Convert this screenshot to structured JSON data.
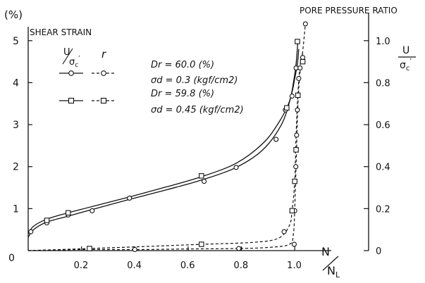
{
  "chart_data": {
    "type": "line",
    "x_axis": {
      "label_num": "N",
      "label_den": "N",
      "label_den_sub": "L",
      "range": [
        0,
        1.1
      ],
      "ticks": [
        {
          "value": 0.2,
          "label": "0.2"
        },
        {
          "value": 0.4,
          "label": "0.4"
        },
        {
          "value": 0.6,
          "label": "0.6"
        },
        {
          "value": 0.8,
          "label": "0.8"
        },
        {
          "value": 1.0,
          "label": "1.0"
        }
      ],
      "origin_label": "0"
    },
    "y_left": {
      "unit": "(%)",
      "label": "SHEAR STRAIN",
      "range": [
        0,
        5.6
      ],
      "ticks": [
        {
          "value": 1,
          "label": "1"
        },
        {
          "value": 2,
          "label": "2"
        },
        {
          "value": 3,
          "label": "3"
        },
        {
          "value": 4,
          "label": "4"
        },
        {
          "value": 5,
          "label": "5"
        }
      ]
    },
    "y_right": {
      "label": "PORE PRESSURE RATIO",
      "symbol_num": "U",
      "symbol_den": "σ",
      "symbol_den_sub": "c",
      "symbol_den_prime": "′",
      "range": [
        0,
        1.12
      ],
      "ticks": [
        {
          "value": 0,
          "label": "0"
        },
        {
          "value": 0.2,
          "label": "0.2"
        },
        {
          "value": 0.4,
          "label": "0.4"
        },
        {
          "value": 0.6,
          "label": "0.6"
        },
        {
          "value": 0.8,
          "label": "0.8"
        },
        {
          "value": 1.0,
          "label": "1.0"
        }
      ]
    },
    "legend": {
      "col1_num": "U",
      "col1_den": "σ",
      "col1_den_sub": "c",
      "col1_den_prime": "′",
      "col2_header": "r",
      "entries": [
        {
          "marker": "circle",
          "line1": "Dr = 60.0 (%)",
          "line2": "σd = 0.3 (kgf/cm2)"
        },
        {
          "marker": "square",
          "line1": "Dr = 59.8 (%)",
          "line2": "σd = 0.45 (kgf/cm2)"
        }
      ]
    },
    "series": [
      {
        "name": "Dr = 60.0 (%), σd = 0.3 (kgf/cm2)",
        "variable": "shear strain",
        "axis": "left",
        "marker": "circle",
        "style": "solid",
        "x": [
          0.0,
          0.02,
          0.07,
          0.15,
          0.24,
          0.38,
          0.52,
          0.65,
          0.78,
          0.88,
          0.95,
          0.985,
          1.0,
          1.01,
          1.015
        ],
        "y": [
          0.32,
          0.5,
          0.68,
          0.82,
          0.98,
          1.22,
          1.45,
          1.68,
          1.98,
          2.4,
          3.0,
          3.65,
          4.1,
          4.45,
          4.8
        ]
      },
      {
        "name": "Dr = 59.8 (%), σd = 0.45 (kgf/cm2)",
        "variable": "shear strain",
        "axis": "left",
        "marker": "square",
        "style": "solid",
        "x": [
          0.0,
          0.02,
          0.07,
          0.15,
          0.24,
          0.38,
          0.52,
          0.65,
          0.78,
          0.88,
          0.94,
          0.98,
          0.995,
          1.005,
          1.012
        ],
        "y": [
          0.4,
          0.58,
          0.75,
          0.9,
          1.05,
          1.28,
          1.52,
          1.76,
          2.08,
          2.55,
          3.05,
          3.55,
          4.0,
          4.45,
          5.0
        ]
      },
      {
        "name": "Dr = 60.0 (%), σd = 0.3 (kgf/cm2)",
        "variable": "pore pressure ratio",
        "axis": "right",
        "marker": "circle",
        "style": "dashed",
        "x": [
          0.0,
          0.2,
          0.4,
          0.6,
          0.78,
          0.9,
          0.98,
          0.995,
          1.0,
          1.006,
          1.012,
          1.02,
          1.03,
          1.04
        ],
        "y": [
          0.0,
          0.005,
          0.005,
          0.008,
          0.01,
          0.015,
          0.03,
          0.08,
          0.2,
          0.45,
          0.7,
          0.85,
          0.95,
          1.08
        ]
      },
      {
        "name": "Dr = 59.8 (%), σd = 0.45 (kgf/cm2)",
        "variable": "pore pressure ratio",
        "axis": "right",
        "marker": "square",
        "style": "dashed",
        "x": [
          0.0,
          0.23,
          0.45,
          0.65,
          0.85,
          0.94,
          0.98,
          0.99,
          1.0,
          1.005,
          1.012,
          1.02,
          1.03
        ],
        "y": [
          0.0,
          0.01,
          0.02,
          0.03,
          0.04,
          0.06,
          0.12,
          0.19,
          0.33,
          0.55,
          0.75,
          0.88,
          0.94
        ]
      }
    ],
    "markers": [
      {
        "series": 0,
        "points": [
          [
            0.01,
            0.45
          ],
          [
            0.07,
            0.66
          ],
          [
            0.15,
            0.85
          ],
          [
            0.24,
            0.95
          ],
          [
            0.38,
            1.25
          ],
          [
            0.66,
            1.65
          ],
          [
            0.78,
            1.98
          ],
          [
            0.93,
            2.65
          ],
          [
            0.965,
            3.35
          ],
          [
            0.99,
            3.68
          ],
          [
            1.005,
            4.35
          ]
        ]
      },
      {
        "series": 1,
        "points": [
          [
            0.07,
            0.72
          ],
          [
            0.15,
            0.9
          ],
          [
            0.65,
            1.78
          ],
          [
            0.97,
            3.4
          ],
          [
            1.01,
            4.98
          ]
        ]
      },
      {
        "series": 2,
        "points": [
          [
            0.4,
            0.005
          ],
          [
            0.79,
            0.01
          ],
          [
            0.96,
            0.09
          ],
          [
            0.998,
            0.03
          ],
          [
            1.0,
            0.19
          ],
          [
            1.004,
            0.4
          ],
          [
            1.007,
            0.55
          ],
          [
            1.01,
            0.67
          ],
          [
            1.015,
            0.82
          ],
          [
            1.02,
            0.87
          ],
          [
            1.03,
            0.92
          ],
          [
            1.04,
            1.08
          ]
        ]
      },
      {
        "series": 3,
        "points": [
          [
            0.23,
            0.01
          ],
          [
            0.65,
            0.03
          ],
          [
            0.99,
            0.19
          ],
          [
            1.0,
            0.33
          ],
          [
            1.005,
            0.48
          ],
          [
            1.012,
            0.74
          ],
          [
            1.03,
            0.9
          ]
        ]
      }
    ]
  }
}
